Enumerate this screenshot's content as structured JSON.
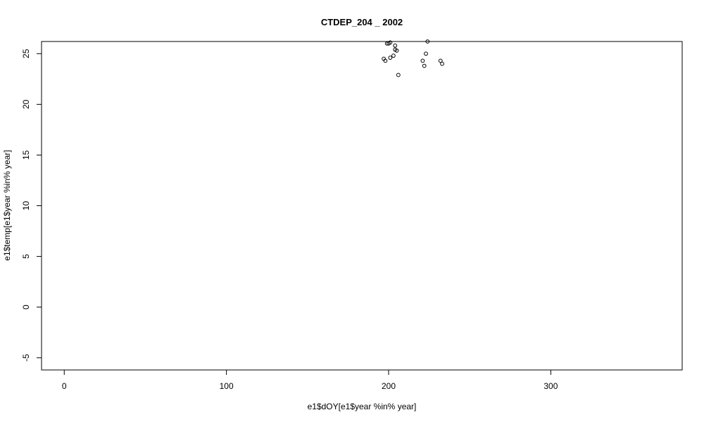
{
  "chart_data": {
    "type": "scatter",
    "title": "CTDEP_204 _ 2002",
    "xlabel": "e1$dOY[e1$year %in% year]",
    "ylabel": "e1$temp[e1$year %in% year]",
    "xlim": [
      -14,
      381
    ],
    "ylim": [
      -6.2,
      26.2
    ],
    "xticks": [
      0,
      100,
      200,
      300
    ],
    "yticks": [
      -5,
      0,
      5,
      10,
      15,
      20,
      25
    ],
    "marker": "open-circle",
    "grid": false,
    "legend": "none",
    "points": [
      {
        "x": 197,
        "y": 24.5
      },
      {
        "x": 198,
        "y": 24.3
      },
      {
        "x": 199,
        "y": 26.0
      },
      {
        "x": 200,
        "y": 26.0
      },
      {
        "x": 201,
        "y": 26.1
      },
      {
        "x": 201,
        "y": 24.6
      },
      {
        "x": 203,
        "y": 24.8
      },
      {
        "x": 204,
        "y": 25.4
      },
      {
        "x": 204,
        "y": 25.8
      },
      {
        "x": 205,
        "y": 25.3
      },
      {
        "x": 206,
        "y": 22.9
      },
      {
        "x": 221,
        "y": 24.3
      },
      {
        "x": 222,
        "y": 23.8
      },
      {
        "x": 223,
        "y": 25.0
      },
      {
        "x": 224,
        "y": 26.2
      },
      {
        "x": 232,
        "y": 24.3
      },
      {
        "x": 233,
        "y": 24.0
      }
    ]
  }
}
